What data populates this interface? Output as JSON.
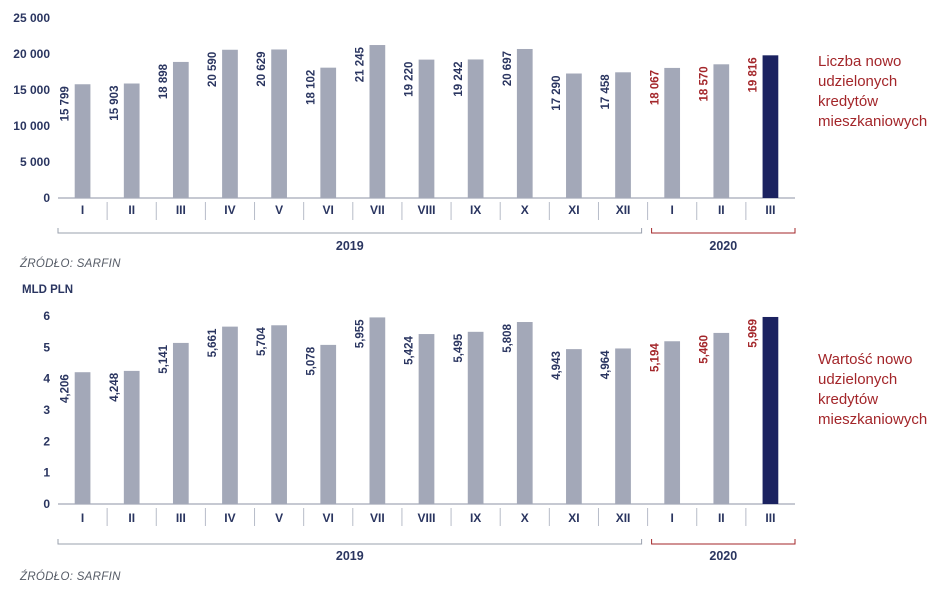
{
  "chart_data": [
    {
      "type": "bar",
      "ylabel": "",
      "ylim": [
        0,
        25000
      ],
      "yticks": [
        "25 000",
        "20 000",
        "15 000",
        "10 000",
        "5 000",
        "0"
      ],
      "ytick_values": [
        25000,
        20000,
        15000,
        10000,
        5000,
        0
      ],
      "categories": [
        "I",
        "II",
        "III",
        "IV",
        "V",
        "VI",
        "VII",
        "VIII",
        "IX",
        "X",
        "XI",
        "XII",
        "I",
        "II",
        "III"
      ],
      "values": [
        15799,
        15903,
        18898,
        20590,
        20629,
        18102,
        21245,
        19220,
        19242,
        20697,
        17290,
        17458,
        18067,
        18570,
        19816
      ],
      "value_labels": [
        "15 799",
        "15 903",
        "18 898",
        "20 590",
        "20 629",
        "18 102",
        "21 245",
        "19 220",
        "19 242",
        "20 697",
        "17 290",
        "17 458",
        "18 067",
        "18 570",
        "19 816"
      ],
      "groups": [
        {
          "label": "2019",
          "start": 0,
          "end": 11
        },
        {
          "label": "2020",
          "start": 12,
          "end": 14
        }
      ],
      "series_label": "Liczba nowo udzielonych kredytów mieszkaniowych",
      "source": "ŹRÓDŁO: SARFIN",
      "grid": false
    },
    {
      "type": "bar",
      "ylabel": "MLD PLN",
      "ylim": [
        0,
        6
      ],
      "yticks": [
        "6",
        "5",
        "4",
        "3",
        "2",
        "1",
        "0"
      ],
      "ytick_values": [
        6,
        5,
        4,
        3,
        2,
        1,
        0
      ],
      "categories": [
        "I",
        "II",
        "III",
        "IV",
        "V",
        "VI",
        "VII",
        "VIII",
        "IX",
        "X",
        "XI",
        "XII",
        "I",
        "II",
        "III"
      ],
      "values": [
        4.206,
        4.248,
        5.141,
        5.661,
        5.704,
        5.078,
        5.955,
        5.424,
        5.495,
        5.808,
        4.943,
        4.964,
        5.194,
        5.46,
        5.969
      ],
      "value_labels": [
        "4,206",
        "4,248",
        "5,141",
        "5,661",
        "5,704",
        "5,078",
        "5,955",
        "5,424",
        "5,495",
        "5,808",
        "4,943",
        "4,964",
        "5,194",
        "5,460",
        "5,969"
      ],
      "groups": [
        {
          "label": "2019",
          "start": 0,
          "end": 11
        },
        {
          "label": "2020",
          "start": 12,
          "end": 14
        }
      ],
      "series_label": "Wartość nowo udzielonych kredytów mieszkaniowych",
      "source": "ŹRÓDŁO: SARFIN",
      "grid": false
    }
  ],
  "colors": {
    "bar": "#a3a8b8",
    "bar_highlight": "#1b2260",
    "axis_text": "#2a3560",
    "label_2020": "#a3262a",
    "line_2020": "#a3262a",
    "line_2019": "#9aa0ae"
  },
  "labels": {
    "chart1_side": [
      "Liczba nowo",
      "udzielonych",
      "kredytów",
      "mieszkaniowych"
    ],
    "chart2_side": [
      "Wartość nowo",
      "udzielonych",
      "kredytów",
      "mieszkaniowych"
    ],
    "source1": "ŹRÓDŁO: SARFIN",
    "source2": "ŹRÓDŁO: SARFIN",
    "unit2": "MLD PLN"
  }
}
